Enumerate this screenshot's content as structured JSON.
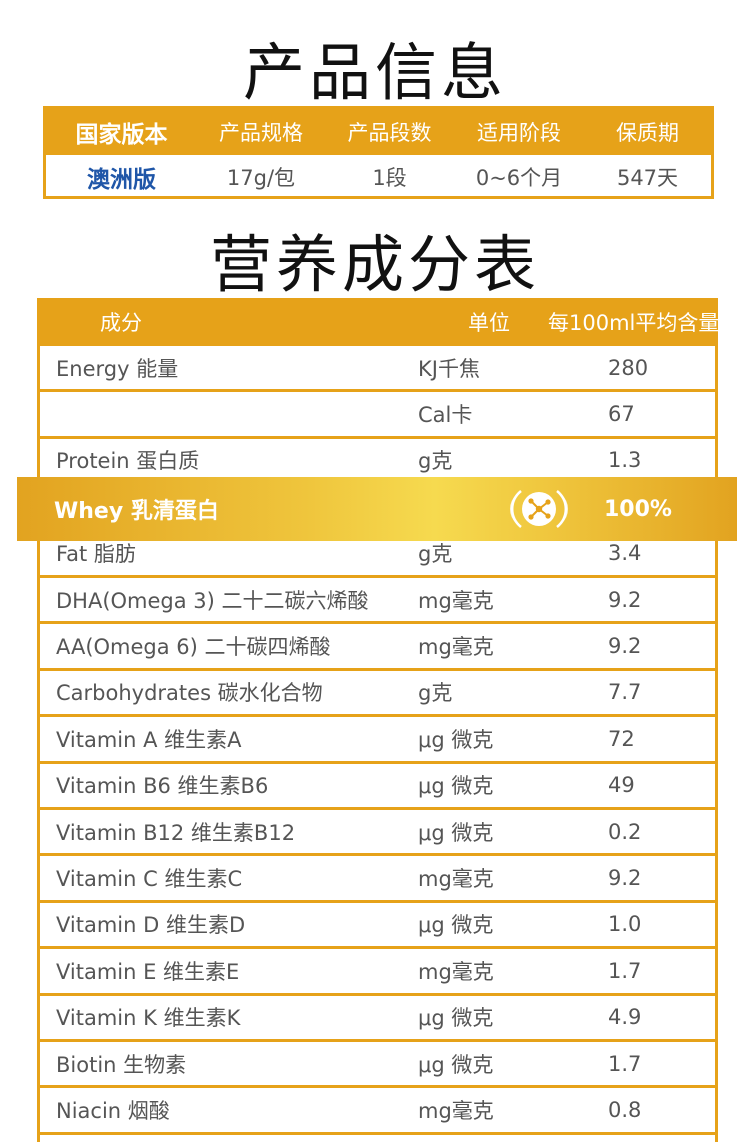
{
  "product_info": {
    "title": "产品信息",
    "headers": [
      "国家版本",
      "产品规格",
      "产品段数",
      "适用阶段",
      "保质期"
    ],
    "values": [
      "澳洲版",
      "17g/包",
      "1段",
      "0~6个月",
      "547天"
    ]
  },
  "nutrition": {
    "title": "营养成分表",
    "headers": [
      "成分",
      "单位",
      "每100ml平均含量"
    ],
    "rows": [
      {
        "name": "Energy 能量",
        "unit": "KJ千焦",
        "value": "280"
      },
      {
        "name": "",
        "unit": "Cal卡",
        "value": "67"
      },
      {
        "name": "Protein 蛋白质",
        "unit": "g克",
        "value": "1.3"
      },
      {
        "name": "Fat 脂肪",
        "unit": "g克",
        "value": "3.4"
      },
      {
        "name": "DHA(Omega 3) 二十二碳六烯酸",
        "unit": "mg毫克",
        "value": "9.2"
      },
      {
        "name": "AA(Omega 6) 二十碳四烯酸",
        "unit": "mg毫克",
        "value": "9.2"
      },
      {
        "name": "Carbohydrates 碳水化合物",
        "unit": "g克",
        "value": "7.7"
      },
      {
        "name": "Vitamin A 维生素A",
        "unit": "μg 微克",
        "value": "72"
      },
      {
        "name": "Vitamin B6 维生素B6",
        "unit": "μg 微克",
        "value": "49"
      },
      {
        "name": "Vitamin B12 维生素B12",
        "unit": "μg 微克",
        "value": "0.2"
      },
      {
        "name": "Vitamin C 维生素C",
        "unit": "mg毫克",
        "value": "9.2"
      },
      {
        "name": "Vitamin D 维生素D",
        "unit": "μg 微克",
        "value": "1.0"
      },
      {
        "name": "Vitamin E 维生素E",
        "unit": "mg毫克",
        "value": "1.7"
      },
      {
        "name": "Vitamin K 维生素K",
        "unit": "μg 微克",
        "value": "4.9"
      },
      {
        "name": "Biotin 生物素",
        "unit": "μg 微克",
        "value": "1.7"
      },
      {
        "name": "Niacin 烟酸",
        "unit": "mg毫克",
        "value": "0.8"
      }
    ],
    "highlight": {
      "name": "Whey 乳清蛋白",
      "value": "100%",
      "icon": "molecule-icon"
    }
  },
  "colors": {
    "accent": "#e6a219",
    "brand_blue": "#1f56a8"
  }
}
